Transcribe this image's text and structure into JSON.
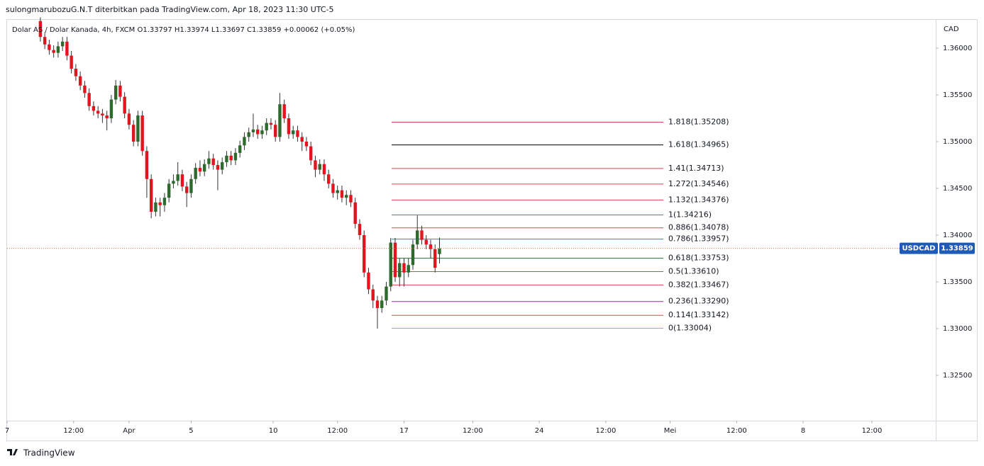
{
  "header": {
    "publisher": "sulongmarubozuG.N.T diterbitkan pada TradingView.com, Apr 18, 2023 11:30 UTC-5",
    "footer": "TradingView"
  },
  "chart_data": {
    "type": "candlestick",
    "legend_text": "Dolar AS / Dolar Kanada, 4h, FXCM  O1.33797  H1.33974  L1.33697  C1.33859  +0.00062 (+0.05%)",
    "y_axis_label": "CAD",
    "symbol": "USDCAD",
    "last_price": {
      "value": 1.33859,
      "label": "1.33859"
    },
    "up_color": "#2e6a2e",
    "down_color": "#e3141e",
    "wick_color": "#333333",
    "last_line_color": "#e8743b",
    "x": [
      0,
      1,
      2,
      3,
      4,
      5,
      6,
      7,
      8,
      9,
      10,
      11,
      12,
      13,
      14,
      15,
      16,
      17,
      18,
      19,
      20,
      21,
      22,
      23,
      24,
      25,
      26,
      27,
      28,
      29,
      30,
      31,
      32,
      33,
      34,
      35,
      36,
      37,
      38,
      39,
      40,
      41,
      42,
      43,
      44,
      45,
      46,
      47,
      48,
      49,
      50,
      51,
      52,
      53,
      54,
      55,
      56,
      57,
      58,
      59,
      60,
      61,
      62,
      63,
      64,
      65,
      66,
      67,
      68,
      69,
      70,
      71,
      72,
      73,
      74,
      75,
      76,
      77,
      78,
      79,
      80,
      81,
      82,
      83,
      84,
      85,
      86,
      87,
      88,
      89,
      90
    ],
    "open": [
      1.3629,
      1.3612,
      1.3604,
      1.3598,
      1.3595,
      1.3602,
      1.3607,
      1.3592,
      1.3578,
      1.357,
      1.356,
      1.3552,
      1.3538,
      1.3533,
      1.353,
      1.3528,
      1.3525,
      1.3545,
      1.356,
      1.3548,
      1.353,
      1.3518,
      1.35,
      1.3528,
      1.349,
      1.346,
      1.3425,
      1.3435,
      1.3432,
      1.344,
      1.3455,
      1.3458,
      1.3465,
      1.3452,
      1.3445,
      1.346,
      1.3472,
      1.3468,
      1.3476,
      1.3482,
      1.3475,
      1.347,
      1.3478,
      1.3485,
      1.348,
      1.3488,
      1.3496,
      1.3505,
      1.351,
      1.3513,
      1.3508,
      1.3512,
      1.352,
      1.3518,
      1.3505,
      1.354,
      1.3525,
      1.3508,
      1.3512,
      1.3505,
      1.35,
      1.3495,
      1.348,
      1.347,
      1.3476,
      1.3465,
      1.3455,
      1.3445,
      1.3448,
      1.344,
      1.3443,
      1.3435,
      1.3412,
      1.34,
      1.336,
      1.3342,
      1.333,
      1.3322,
      1.333,
      1.3345,
      1.3392,
      1.3355,
      1.337,
      1.336,
      1.3368,
      1.339,
      1.3405,
      1.3395,
      1.339,
      1.3385,
      1.33797
    ],
    "high": [
      1.3633,
      1.3617,
      1.3609,
      1.3603,
      1.3607,
      1.3612,
      1.3612,
      1.3597,
      1.3583,
      1.3575,
      1.3565,
      1.3557,
      1.3543,
      1.3538,
      1.3535,
      1.3533,
      1.355,
      1.3566,
      1.3565,
      1.3553,
      1.3535,
      1.3523,
      1.3533,
      1.3533,
      1.3495,
      1.3465,
      1.344,
      1.344,
      1.3445,
      1.346,
      1.3465,
      1.3478,
      1.347,
      1.3457,
      1.3465,
      1.3477,
      1.348,
      1.3481,
      1.349,
      1.3487,
      1.348,
      1.3483,
      1.349,
      1.349,
      1.3493,
      1.3501,
      1.351,
      1.3515,
      1.353,
      1.3518,
      1.3517,
      1.3525,
      1.3525,
      1.3523,
      1.3552,
      1.3545,
      1.353,
      1.3517,
      1.3517,
      1.351,
      1.3505,
      1.35,
      1.3485,
      1.3481,
      1.3481,
      1.347,
      1.346,
      1.3453,
      1.3453,
      1.3448,
      1.3448,
      1.344,
      1.3417,
      1.3405,
      1.3365,
      1.3347,
      1.3335,
      1.3335,
      1.335,
      1.3397,
      1.3397,
      1.3375,
      1.3375,
      1.3375,
      1.3395,
      1.3421,
      1.341,
      1.34,
      1.3395,
      1.339,
      1.33974
    ],
    "low": [
      1.3607,
      1.3599,
      1.3593,
      1.359,
      1.359,
      1.3597,
      1.3587,
      1.3573,
      1.3565,
      1.3555,
      1.3547,
      1.3533,
      1.3528,
      1.3525,
      1.352,
      1.3512,
      1.352,
      1.354,
      1.3543,
      1.3525,
      1.3513,
      1.3495,
      1.3495,
      1.3485,
      1.344,
      1.3418,
      1.342,
      1.342,
      1.3425,
      1.3435,
      1.345,
      1.3453,
      1.3447,
      1.343,
      1.344,
      1.3455,
      1.3463,
      1.3463,
      1.3471,
      1.347,
      1.3448,
      1.3465,
      1.3473,
      1.3475,
      1.3475,
      1.3483,
      1.3491,
      1.35,
      1.3505,
      1.3503,
      1.3503,
      1.3507,
      1.3513,
      1.35,
      1.35,
      1.352,
      1.3503,
      1.3503,
      1.35,
      1.349,
      1.349,
      1.3475,
      1.3462,
      1.3465,
      1.3458,
      1.345,
      1.344,
      1.3438,
      1.3435,
      1.3432,
      1.343,
      1.3407,
      1.3395,
      1.3355,
      1.3337,
      1.3322,
      1.33,
      1.3317,
      1.3325,
      1.334,
      1.335,
      1.3345,
      1.3345,
      1.3355,
      1.3363,
      1.3385,
      1.339,
      1.3385,
      1.3375,
      1.336,
      1.33697
    ],
    "close": [
      1.3612,
      1.3604,
      1.3598,
      1.3595,
      1.3602,
      1.3607,
      1.3592,
      1.3578,
      1.357,
      1.356,
      1.3552,
      1.3538,
      1.3533,
      1.353,
      1.3528,
      1.3525,
      1.3545,
      1.356,
      1.3548,
      1.353,
      1.3518,
      1.35,
      1.3528,
      1.349,
      1.346,
      1.3425,
      1.3435,
      1.3432,
      1.344,
      1.3455,
      1.3458,
      1.3465,
      1.3452,
      1.3445,
      1.346,
      1.3472,
      1.3468,
      1.3476,
      1.3482,
      1.3475,
      1.347,
      1.3478,
      1.3485,
      1.348,
      1.3488,
      1.3496,
      1.3505,
      1.351,
      1.3513,
      1.3508,
      1.3512,
      1.352,
      1.3518,
      1.3505,
      1.354,
      1.3525,
      1.3508,
      1.3512,
      1.3505,
      1.35,
      1.3495,
      1.348,
      1.347,
      1.3476,
      1.3465,
      1.3455,
      1.3445,
      1.3448,
      1.344,
      1.3443,
      1.3435,
      1.3412,
      1.34,
      1.336,
      1.3342,
      1.333,
      1.3322,
      1.333,
      1.3345,
      1.3392,
      1.3355,
      1.337,
      1.336,
      1.3368,
      1.339,
      1.3405,
      1.3395,
      1.339,
      1.3385,
      1.3365,
      1.33859
    ],
    "xlim": [
      -7.5,
      201.9
    ],
    "xticks": [
      {
        "value": -7.5,
        "label": "7"
      },
      {
        "value": 7.5,
        "label": "12:00"
      },
      {
        "value": 20,
        "label": "Apr"
      },
      {
        "value": 34,
        "label": "5"
      },
      {
        "value": 52.5,
        "label": "10"
      },
      {
        "value": 67,
        "label": "12:00"
      },
      {
        "value": 82,
        "label": "17"
      },
      {
        "value": 97.5,
        "label": "12:00"
      },
      {
        "value": 112.5,
        "label": "24"
      },
      {
        "value": 127.5,
        "label": "12:00"
      },
      {
        "value": 142,
        "label": "Mei"
      },
      {
        "value": 157,
        "label": "12:00"
      },
      {
        "value": 172,
        "label": "8"
      },
      {
        "value": 187.5,
        "label": "12:00"
      }
    ],
    "ylim": [
      1.32015,
      1.36303
    ],
    "yticks": [
      {
        "value": 1.325,
        "label": "1.32500"
      },
      {
        "value": 1.33,
        "label": "1.33000"
      },
      {
        "value": 1.335,
        "label": "1.33500"
      },
      {
        "value": 1.34,
        "label": "1.34000"
      },
      {
        "value": 1.345,
        "label": "1.34500"
      },
      {
        "value": 1.35,
        "label": "1.35000"
      },
      {
        "value": 1.355,
        "label": "1.35500"
      },
      {
        "value": 1.36,
        "label": "1.36000"
      }
    ],
    "fib_levels": [
      {
        "value": 1.35208,
        "label": "1.818(1.35208)",
        "color": "#e0404e"
      },
      {
        "value": 1.34965,
        "label": "1.618(1.34965)",
        "color": "#000000"
      },
      {
        "value": 1.34713,
        "label": "1.41(1.34713)",
        "color": "#e0404e"
      },
      {
        "value": 1.34546,
        "label": "1.272(1.34546)",
        "color": "#e0404e"
      },
      {
        "value": 1.34376,
        "label": "1.132(1.34376)",
        "color": "#e0404e"
      },
      {
        "value": 1.34216,
        "label": "1(1.34216)",
        "color": "#1a96a6"
      },
      {
        "value": 1.34078,
        "label": "0.886(1.34078)",
        "color": "#e0404e"
      },
      {
        "value": 1.33957,
        "label": "0.786(1.33957)",
        "color": "#3a78d4"
      },
      {
        "value": 1.33753,
        "label": "0.618(1.33753)",
        "color": "#2d6a3a"
      },
      {
        "value": 1.3361,
        "label": "0.5(1.33610)",
        "color": "#e0404e"
      },
      {
        "value": 1.33467,
        "label": "0.382(1.33467)",
        "color": "#e0404e"
      },
      {
        "value": 1.3329,
        "label": "0.236(1.33290)",
        "color": "#9c27b0"
      },
      {
        "value": 1.33142,
        "label": "0.114(1.33142)",
        "color": "#e0404e"
      },
      {
        "value": 1.33004,
        "label": "0(1.33004)",
        "color": "#f0a000"
      }
    ]
  }
}
